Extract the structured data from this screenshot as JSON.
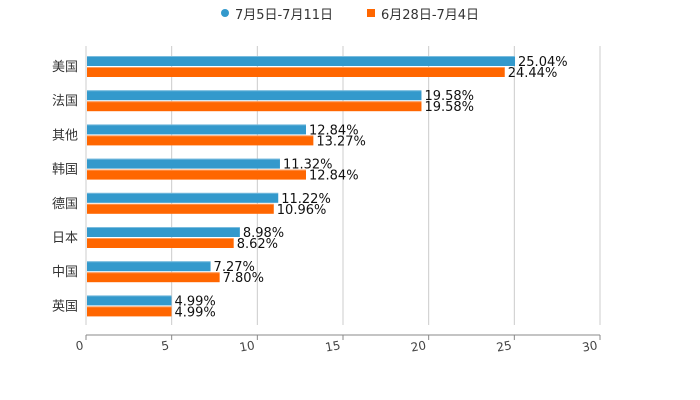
{
  "legend": {
    "series": [
      {
        "label": "7月5日-7月11日",
        "color": "#3399cc",
        "marker": "circle"
      },
      {
        "label": "6月28日-7月4日",
        "color": "#ff6600",
        "marker": "square"
      }
    ]
  },
  "chart_data": {
    "type": "bar",
    "orientation": "horizontal",
    "title": "",
    "xlabel": "",
    "ylabel": "",
    "categories": [
      "美国",
      "法国",
      "其他",
      "韩国",
      "德国",
      "日本",
      "中国",
      "英国"
    ],
    "series": [
      {
        "name": "7月5日-7月11日",
        "color": "#3399cc",
        "values": [
          25.04,
          19.58,
          12.84,
          11.32,
          11.22,
          8.98,
          7.27,
          4.99
        ],
        "labels": [
          "25.04%",
          "19.58%",
          "12.84%",
          "11.32%",
          "11.22%",
          "8.98%",
          "7.27%",
          "4.99%"
        ]
      },
      {
        "name": "6月28日-7月4日",
        "color": "#ff6600",
        "values": [
          24.44,
          19.58,
          13.27,
          12.84,
          10.96,
          8.62,
          7.8,
          4.99
        ],
        "labels": [
          "24.44%",
          "19.58%",
          "13.27%",
          "12.84%",
          "10.96%",
          "8.62%",
          "7.80%",
          "4.99%"
        ]
      }
    ],
    "xlim": [
      0,
      30
    ],
    "xticks": [
      0,
      5,
      10,
      15,
      20,
      25,
      30
    ],
    "xtick_labels": [
      "0",
      "5",
      "10",
      "15",
      "20",
      "25",
      "30"
    ],
    "grid": true,
    "legend_position": "top"
  }
}
